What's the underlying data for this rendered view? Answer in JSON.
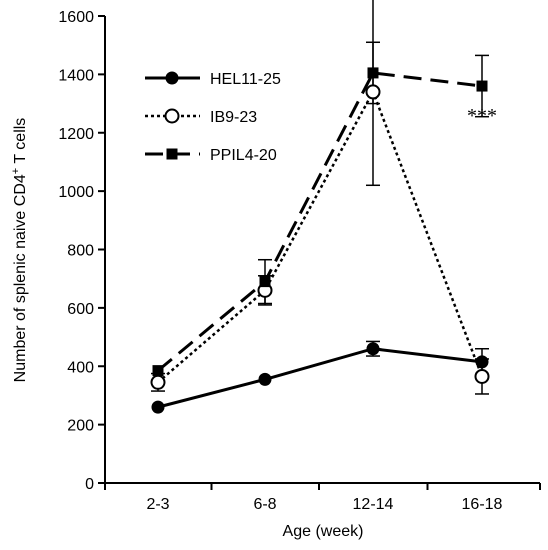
{
  "chart_data": {
    "type": "line",
    "xlabel": "Age (week)",
    "ylabel_main": "Number of splenic naive CD4",
    "ylabel_sup": "+",
    "ylabel_tail": " T cells",
    "categories": [
      "2-3",
      "6-8",
      "12-14",
      "16-18"
    ],
    "ylim": [
      0,
      1600
    ],
    "yticks": [
      "0",
      "200",
      "400",
      "600",
      "800",
      "1000",
      "1200",
      "1400",
      "1600"
    ],
    "legend_position": "top-left",
    "series": [
      {
        "name": "HEL11-25",
        "style": "solid",
        "marker": "filled-circle",
        "values": [
          260,
          355,
          460,
          415
        ],
        "errors": [
          0,
          0,
          25,
          45
        ]
      },
      {
        "name": "IB9-23",
        "style": "dotted",
        "marker": "open-circle",
        "values": [
          345,
          660,
          1340,
          365
        ],
        "errors": [
          30,
          50,
          320,
          60
        ]
      },
      {
        "name": "PPIL4-20",
        "style": "dashed",
        "marker": "filled-square",
        "values": [
          385,
          690,
          1405,
          1360
        ],
        "errors": [
          0,
          75,
          105,
          105
        ]
      }
    ],
    "annotations": [
      {
        "text": "***",
        "category": "16-18",
        "y": 1265
      }
    ]
  }
}
